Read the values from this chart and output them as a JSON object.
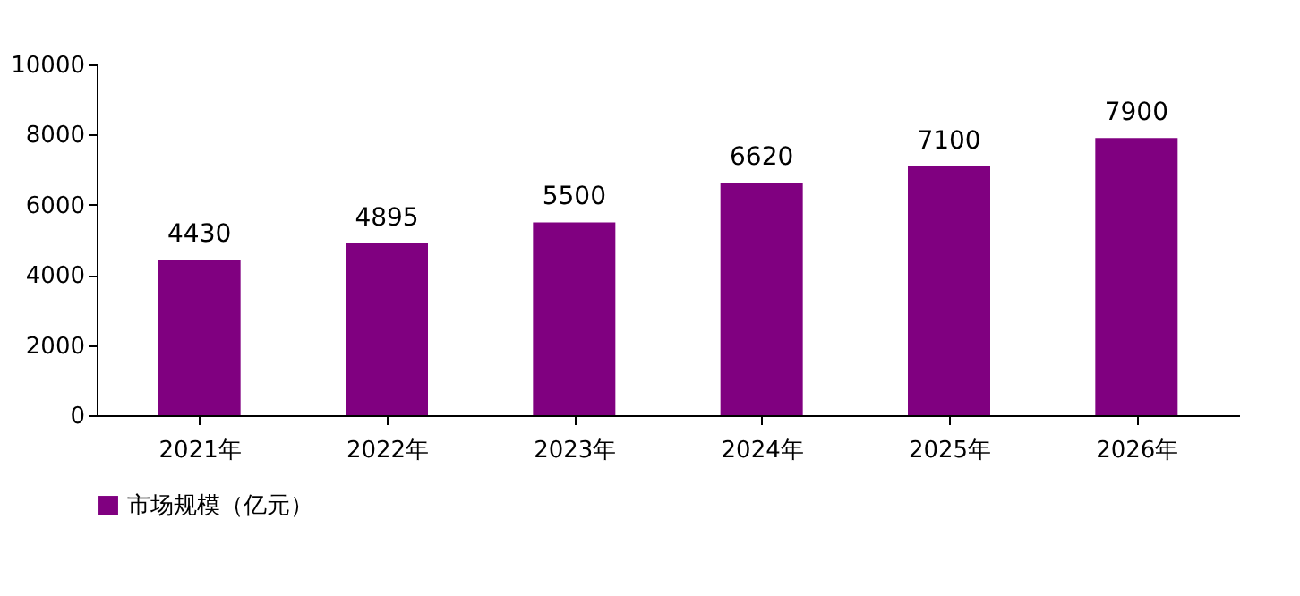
{
  "chart_data": {
    "type": "bar",
    "categories": [
      "2021年",
      "2022年",
      "2023年",
      "2024年",
      "2025年",
      "2026年"
    ],
    "series": [
      {
        "name": "市场规模（亿元）",
        "color": "#800080",
        "values": [
          4430,
          4895,
          5500,
          6620,
          7100,
          7900
        ]
      }
    ],
    "ylim": [
      0,
      10000
    ],
    "yticks": [
      0,
      2000,
      4000,
      6000,
      8000,
      10000
    ],
    "grid": false,
    "legend": "bottom",
    "data_labels": true
  }
}
